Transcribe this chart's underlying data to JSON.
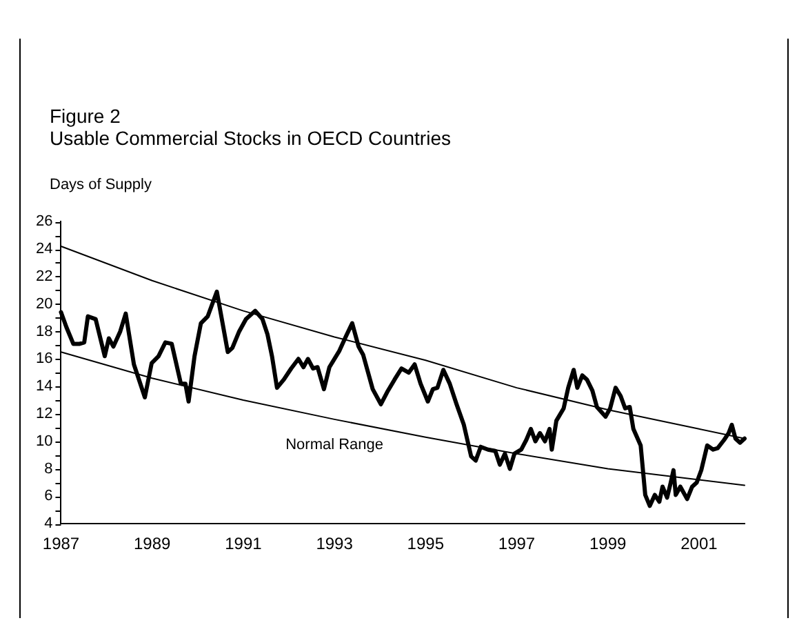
{
  "chart_data": {
    "type": "line",
    "title": "Figure 2",
    "subtitle": "Usable Commercial Stocks in OECD Countries",
    "ylabel": "Days of Supply",
    "xlim": [
      1987,
      2002
    ],
    "xticks": [
      1987,
      1989,
      1991,
      1993,
      1995,
      1997,
      1999,
      2001
    ],
    "ylim": [
      4,
      26
    ],
    "yticks": [
      4,
      {
        "value": 5,
        "label": null
      },
      6,
      {
        "value": 7,
        "label": null
      },
      8,
      {
        "value": 9,
        "label": null
      },
      10,
      {
        "value": 11,
        "label": null
      },
      12,
      {
        "value": 13,
        "label": null
      },
      14,
      {
        "value": 15,
        "label": null
      },
      16,
      {
        "value": 17,
        "label": null
      },
      18,
      {
        "value": 19,
        "label": null
      },
      20,
      {
        "value": 21,
        "label": null
      },
      22,
      {
        "value": 23,
        "label": null
      },
      24,
      {
        "value": 25,
        "label": null
      },
      26
    ],
    "grid": false,
    "legend": false,
    "marker": "none",
    "line_style": "solid",
    "annotations": [
      "Normal Range"
    ],
    "series": [
      {
        "color": "#000000",
        "x": [
          1987,
          1989,
          1991,
          1993,
          1995,
          1997,
          1999,
          2001,
          2002
        ],
        "values": [
          24.2,
          21.7,
          19.5,
          17.6,
          15.9,
          13.9,
          12.3,
          10.9,
          10.2
        ]
      },
      {
        "color": "#000000",
        "x": [
          1987,
          1989,
          1991,
          1993,
          1995,
          1997,
          1999,
          2001,
          2002
        ],
        "values": [
          16.5,
          14.6,
          13.0,
          11.6,
          10.3,
          9.1,
          8.0,
          7.2,
          6.8
        ]
      },
      {
        "color": "#000000",
        "x": [
          1987.0,
          1987.12,
          1987.27,
          1987.41,
          1987.51,
          1987.59,
          1987.76,
          1987.96,
          1988.05,
          1988.15,
          1988.3,
          1988.42,
          1988.6,
          1988.84,
          1988.99,
          1989.14,
          1989.29,
          1989.43,
          1989.63,
          1989.73,
          1989.8,
          1989.93,
          1990.07,
          1990.22,
          1990.42,
          1990.66,
          1990.76,
          1990.91,
          1991.06,
          1991.26,
          1991.42,
          1991.53,
          1991.63,
          1991.74,
          1991.89,
          1992.05,
          1992.21,
          1992.32,
          1992.42,
          1992.53,
          1992.63,
          1992.77,
          1992.89,
          1993.11,
          1993.26,
          1993.39,
          1993.53,
          1993.63,
          1993.84,
          1994.02,
          1994.16,
          1994.32,
          1994.47,
          1994.63,
          1994.76,
          1994.89,
          1995.05,
          1995.16,
          1995.26,
          1995.39,
          1995.53,
          1995.68,
          1995.84,
          1996.0,
          1996.1,
          1996.21,
          1996.37,
          1996.53,
          1996.63,
          1996.74,
          1996.85,
          1996.95,
          1997.1,
          1997.21,
          1997.31,
          1997.41,
          1997.51,
          1997.62,
          1997.72,
          1997.77,
          1997.87,
          1998.03,
          1998.13,
          1998.25,
          1998.33,
          1998.44,
          1998.54,
          1998.66,
          1998.76,
          1998.95,
          1999.05,
          1999.17,
          1999.28,
          1999.38,
          1999.48,
          1999.56,
          1999.72,
          1999.82,
          1999.92,
          2000.03,
          2000.13,
          2000.2,
          2000.3,
          2000.38,
          2000.44,
          2000.49,
          2000.59,
          2000.74,
          2000.85,
          2000.95,
          2001.05,
          2001.18,
          2001.31,
          2001.41,
          2001.55,
          2001.65,
          2001.72,
          2001.8,
          2001.9,
          2002.0
        ],
        "values": [
          19.4,
          18.3,
          17.1,
          17.1,
          17.2,
          19.1,
          18.9,
          16.2,
          17.5,
          16.9,
          18.0,
          19.3,
          15.6,
          13.2,
          15.7,
          16.2,
          17.2,
          17.1,
          14.2,
          14.2,
          12.9,
          16.2,
          18.6,
          19.1,
          20.9,
          16.5,
          16.8,
          18.0,
          18.9,
          19.5,
          18.9,
          17.8,
          16.2,
          13.9,
          14.5,
          15.3,
          16.0,
          15.4,
          16.0,
          15.3,
          15.4,
          13.8,
          15.4,
          16.6,
          17.7,
          18.6,
          16.9,
          16.3,
          13.8,
          12.7,
          13.6,
          14.5,
          15.3,
          15.0,
          15.6,
          14.2,
          12.9,
          13.8,
          13.9,
          15.2,
          14.2,
          12.7,
          11.2,
          8.9,
          8.6,
          9.6,
          9.4,
          9.3,
          8.3,
          9.1,
          8.0,
          9.1,
          9.4,
          10.1,
          10.9,
          10.0,
          10.6,
          10.0,
          10.9,
          9.4,
          11.5,
          12.4,
          13.9,
          15.2,
          13.9,
          14.8,
          14.5,
          13.7,
          12.5,
          11.8,
          12.4,
          13.9,
          13.3,
          12.4,
          12.5,
          10.9,
          9.7,
          6.1,
          5.3,
          6.1,
          5.6,
          6.7,
          5.9,
          7.0,
          7.9,
          6.1,
          6.7,
          5.8,
          6.7,
          7.0,
          7.9,
          9.7,
          9.4,
          9.5,
          10.1,
          10.6,
          11.2,
          10.2,
          9.9,
          10.2
        ]
      }
    ]
  }
}
